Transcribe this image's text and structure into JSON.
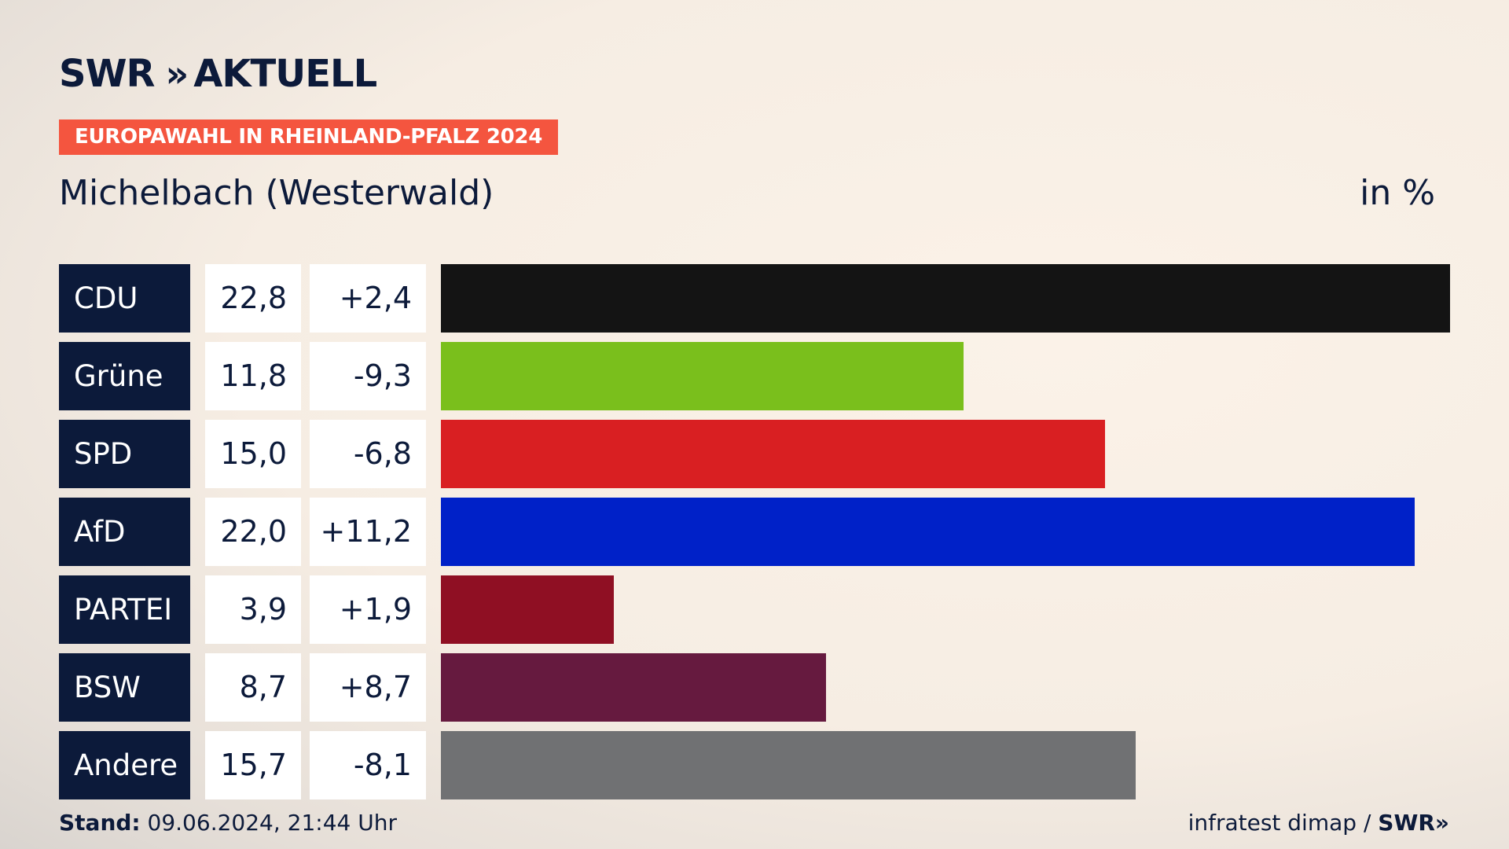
{
  "header": {
    "logo_text": "SWR",
    "logo_chevrons": "»",
    "logo_suffix": "AKTUELL",
    "badge": "EUROPAWAHL IN RHEINLAND-PFALZ 2024",
    "title": "Michelbach (Westerwald)",
    "unit": "in %"
  },
  "footer": {
    "stand_label": "Stand:",
    "stand_value": "09.06.2024, 21:44 Uhr",
    "source": "infratest dimap /",
    "source_brand": "SWR»"
  },
  "chart_data": {
    "type": "bar",
    "categories": [
      "CDU",
      "Grüne",
      "SPD",
      "AfD",
      "PARTEI",
      "BSW",
      "Andere"
    ],
    "values": [
      22.8,
      11.8,
      15.0,
      22.0,
      3.9,
      8.7,
      15.7
    ],
    "value_labels": [
      "22,8",
      "11,8",
      "15,0",
      "22,0",
      "3,9",
      "8,7",
      "15,7"
    ],
    "diff_labels": [
      "+2,4",
      "-9,3",
      "-6,8",
      "+11,2",
      "+1,9",
      "+8,7",
      "-8,1"
    ],
    "colors": [
      "#141414",
      "#7abf1c",
      "#d91f22",
      "#0021c8",
      "#8f0f23",
      "#661a3f",
      "#707173"
    ],
    "orientation": "horizontal",
    "xlim": [
      0,
      22.8
    ]
  }
}
